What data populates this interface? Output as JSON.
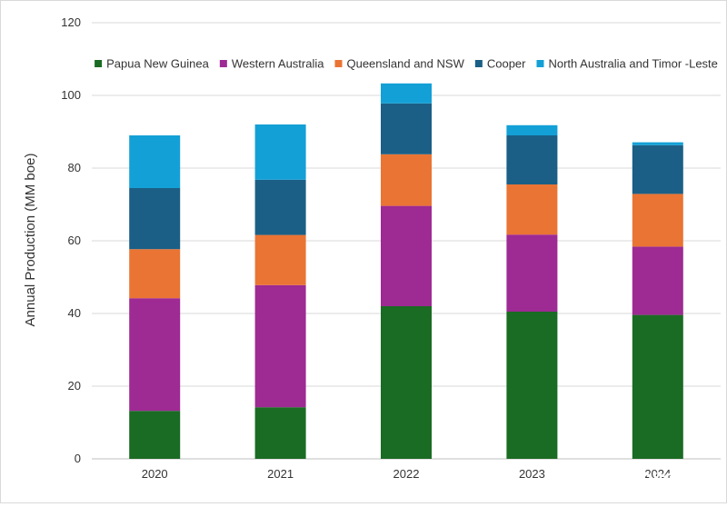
{
  "chart_data": {
    "type": "bar",
    "stacked": true,
    "categories": [
      "2020",
      "2021",
      "2022",
      "2023",
      "2024"
    ],
    "series": [
      {
        "name": "Papua New Guinea",
        "color": "#1a6b23",
        "values": [
          13.2,
          14.2,
          42.0,
          40.5,
          39.6
        ]
      },
      {
        "name": "Western Australia",
        "color": "#9e2a93",
        "values": [
          31.0,
          33.6,
          27.6,
          21.2,
          18.8
        ]
      },
      {
        "name": "Queensland and NSW",
        "color": "#ea7434",
        "values": [
          13.5,
          13.8,
          14.2,
          13.8,
          14.5
        ]
      },
      {
        "name": "Cooper",
        "color": "#1b5f86",
        "values": [
          16.8,
          15.2,
          14.0,
          13.5,
          13.4
        ]
      },
      {
        "name": "North Australia and Timor -Leste",
        "color": "#13a0d6",
        "values": [
          14.5,
          15.2,
          5.5,
          2.8,
          0.8
        ]
      }
    ],
    "title": "",
    "xlabel": "",
    "ylabel": "Annual Production (MM boe)",
    "ylim": [
      0,
      120
    ],
    "yticks": [
      0,
      20,
      40,
      60,
      80,
      100,
      120
    ],
    "grid": true,
    "legend_position": "top",
    "watermark": "雪球：OilGas"
  }
}
